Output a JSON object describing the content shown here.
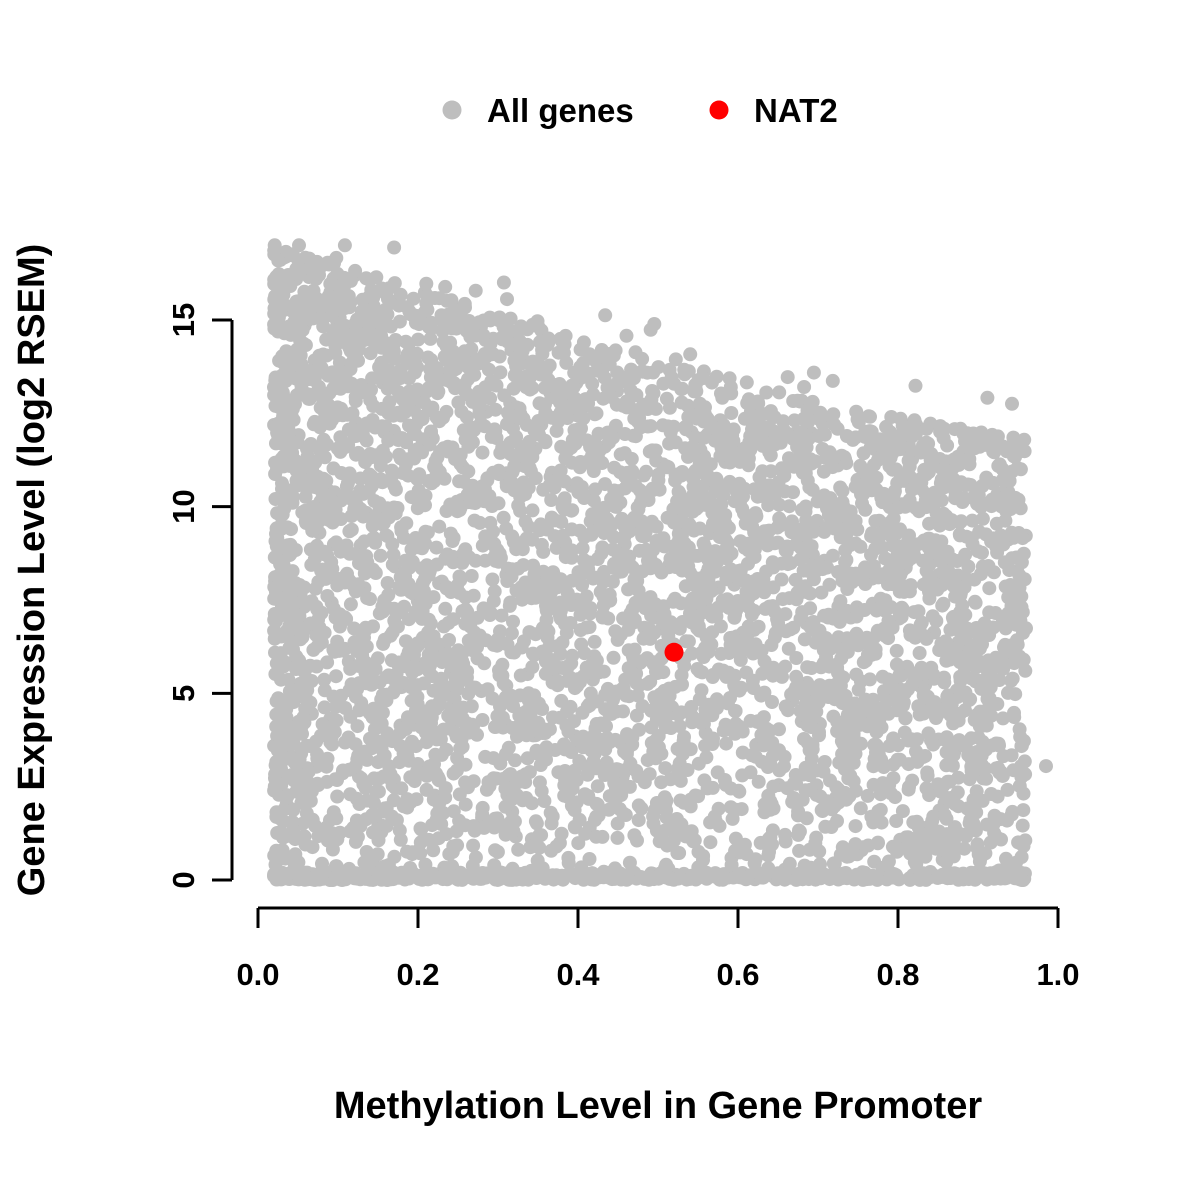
{
  "chart_data": {
    "type": "scatter",
    "title": "",
    "xlabel": "Methylation Level in Gene Promoter",
    "ylabel": "Gene Expression Level (log2 RSEM)",
    "xlim": [
      0,
      1
    ],
    "ylim": [
      0,
      17
    ],
    "grid": false,
    "legend_position": "top-center",
    "x_ticks": [
      0.0,
      0.2,
      0.4,
      0.6,
      0.8,
      1.0
    ],
    "x_tick_labels": [
      "0.0",
      "0.2",
      "0.4",
      "0.6",
      "0.8",
      "1.0"
    ],
    "y_ticks": [
      0,
      5,
      10,
      15
    ],
    "y_tick_labels": [
      "0",
      "5",
      "10",
      "15"
    ],
    "legend": [
      {
        "label": "All genes",
        "color": "#bebebe"
      },
      {
        "label": "NAT2",
        "color": "#ff0000"
      }
    ],
    "series": [
      {
        "name": "All genes",
        "color": "#bebebe",
        "type": "dense-cloud",
        "n_points": 5200,
        "point_radius": 7,
        "seed": 42,
        "x_range": [
          0.02,
          0.96
        ],
        "y_range": [
          0,
          16.9
        ],
        "upper_envelope": {
          "x": [
            0.0,
            0.1,
            0.2,
            0.3,
            0.4,
            0.5,
            0.6,
            0.7,
            0.8,
            0.9,
            0.96
          ],
          "y": [
            17.0,
            16.5,
            15.8,
            15.2,
            14.6,
            14.0,
            13.4,
            12.8,
            12.4,
            12.0,
            11.8
          ]
        },
        "outliers": [
          [
            0.985,
            3.05
          ]
        ]
      },
      {
        "name": "NAT2",
        "color": "#ff0000",
        "point_radius": 9.5,
        "points": [
          {
            "x": 0.52,
            "y": 6.1
          }
        ]
      }
    ]
  }
}
